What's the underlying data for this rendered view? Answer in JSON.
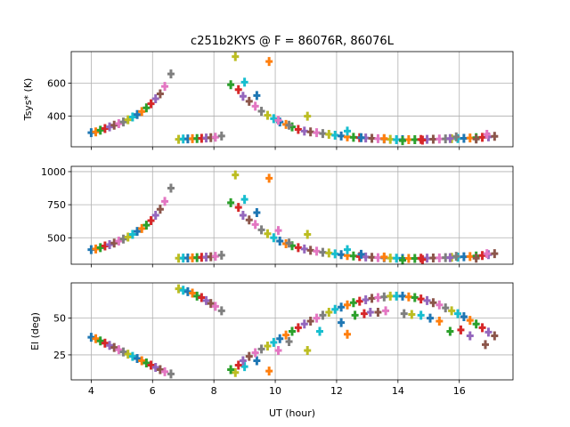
{
  "chart_data": {
    "type": "scatter",
    "title": "c251b2KYS @ F = 86076R, 86076L",
    "xlabel": "UT (hour)",
    "palette": [
      "#1f77b4",
      "#ff7f0e",
      "#2ca02c",
      "#d62728",
      "#9467bd",
      "#8c564b",
      "#e377c2",
      "#7f7f7f",
      "#bcbd22",
      "#17becf"
    ],
    "x_ticks": [
      "4",
      "6",
      "8",
      "10",
      "12",
      "14",
      "16"
    ],
    "x_range": [
      3.35,
      17.75
    ],
    "panels": [
      {
        "ylabel": "Tsys* (K)",
        "y_range": [
          215,
          790
        ],
        "y_ticks": [
          "400",
          "600"
        ],
        "y_tick_values": [
          400,
          600
        ],
        "points": [
          [
            4.0,
            300
          ],
          [
            4.15,
            305
          ],
          [
            4.3,
            315
          ],
          [
            4.45,
            325
          ],
          [
            4.6,
            335
          ],
          [
            4.75,
            345
          ],
          [
            4.9,
            355
          ],
          [
            5.05,
            365
          ],
          [
            5.2,
            378
          ],
          [
            5.35,
            395
          ],
          [
            5.5,
            410
          ],
          [
            5.65,
            428
          ],
          [
            5.8,
            450
          ],
          [
            5.95,
            475
          ],
          [
            6.1,
            505
          ],
          [
            6.25,
            535
          ],
          [
            6.4,
            580
          ],
          [
            6.6,
            655
          ],
          [
            6.85,
            260
          ],
          [
            7.0,
            262
          ],
          [
            7.15,
            263
          ],
          [
            7.3,
            264
          ],
          [
            7.45,
            265
          ],
          [
            7.6,
            266
          ],
          [
            7.75,
            268
          ],
          [
            7.9,
            270
          ],
          [
            8.05,
            273
          ],
          [
            8.25,
            280
          ],
          [
            8.7,
            760
          ],
          [
            9.0,
            605
          ],
          [
            9.4,
            525
          ],
          [
            9.8,
            730
          ],
          [
            8.55,
            590
          ],
          [
            8.8,
            560
          ],
          [
            8.95,
            520
          ],
          [
            9.15,
            490
          ],
          [
            9.35,
            460
          ],
          [
            9.55,
            430
          ],
          [
            9.75,
            405
          ],
          [
            9.95,
            385
          ],
          [
            10.15,
            365
          ],
          [
            10.35,
            350
          ],
          [
            10.55,
            335
          ],
          [
            10.75,
            320
          ],
          [
            10.95,
            310
          ],
          [
            11.15,
            305
          ],
          [
            11.35,
            300
          ],
          [
            11.55,
            295
          ],
          [
            11.75,
            290
          ],
          [
            11.95,
            285
          ],
          [
            12.15,
            280
          ],
          [
            12.35,
            275
          ],
          [
            12.55,
            272
          ],
          [
            12.75,
            270
          ],
          [
            12.95,
            268
          ],
          [
            13.15,
            266
          ],
          [
            13.35,
            264
          ],
          [
            13.55,
            262
          ],
          [
            13.75,
            260
          ],
          [
            13.95,
            258
          ],
          [
            14.15,
            258
          ],
          [
            14.35,
            258
          ],
          [
            14.55,
            258
          ],
          [
            14.75,
            259
          ],
          [
            14.95,
            260
          ],
          [
            15.15,
            261
          ],
          [
            15.35,
            262
          ],
          [
            15.55,
            263
          ],
          [
            15.75,
            264
          ],
          [
            15.95,
            265
          ],
          [
            16.15,
            266
          ],
          [
            16.35,
            268
          ],
          [
            16.55,
            270
          ],
          [
            16.75,
            272
          ],
          [
            16.95,
            275
          ],
          [
            17.15,
            278
          ],
          [
            10.1,
            375
          ],
          [
            10.45,
            345
          ],
          [
            11.05,
            400
          ],
          [
            12.35,
            310
          ],
          [
            12.8,
            270
          ],
          [
            13.55,
            265
          ],
          [
            14.15,
            252
          ],
          [
            14.8,
            255
          ],
          [
            15.7,
            265
          ],
          [
            16.55,
            262
          ],
          [
            16.9,
            290
          ],
          [
            15.9,
            275
          ]
        ]
      },
      {
        "ylabel": "",
        "y_range": [
          300,
          1040
        ],
        "y_ticks": [
          "500",
          "750",
          "1000"
        ],
        "y_tick_values": [
          500,
          750,
          1000
        ],
        "points": [
          [
            4.0,
            410
          ],
          [
            4.15,
            415
          ],
          [
            4.3,
            425
          ],
          [
            4.45,
            438
          ],
          [
            4.6,
            448
          ],
          [
            4.75,
            460
          ],
          [
            4.9,
            475
          ],
          [
            5.05,
            490
          ],
          [
            5.2,
            505
          ],
          [
            5.35,
            525
          ],
          [
            5.5,
            548
          ],
          [
            5.65,
            570
          ],
          [
            5.8,
            595
          ],
          [
            5.95,
            630
          ],
          [
            6.1,
            670
          ],
          [
            6.25,
            715
          ],
          [
            6.4,
            775
          ],
          [
            6.6,
            875
          ],
          [
            6.85,
            345
          ],
          [
            7.0,
            346
          ],
          [
            7.15,
            347
          ],
          [
            7.3,
            348
          ],
          [
            7.45,
            350
          ],
          [
            7.6,
            352
          ],
          [
            7.75,
            354
          ],
          [
            7.9,
            356
          ],
          [
            8.05,
            360
          ],
          [
            8.25,
            368
          ],
          [
            8.7,
            975
          ],
          [
            9.0,
            790
          ],
          [
            9.4,
            690
          ],
          [
            9.8,
            950
          ],
          [
            8.55,
            765
          ],
          [
            8.8,
            730
          ],
          [
            8.95,
            670
          ],
          [
            9.15,
            635
          ],
          [
            9.35,
            600
          ],
          [
            9.55,
            560
          ],
          [
            9.75,
            530
          ],
          [
            9.95,
            500
          ],
          [
            10.15,
            475
          ],
          [
            10.35,
            455
          ],
          [
            10.55,
            440
          ],
          [
            10.75,
            425
          ],
          [
            10.95,
            415
          ],
          [
            11.15,
            405
          ],
          [
            11.35,
            398
          ],
          [
            11.55,
            390
          ],
          [
            11.75,
            385
          ],
          [
            11.95,
            378
          ],
          [
            12.15,
            372
          ],
          [
            12.35,
            366
          ],
          [
            12.55,
            362
          ],
          [
            12.75,
            358
          ],
          [
            12.95,
            355
          ],
          [
            13.15,
            352
          ],
          [
            13.35,
            350
          ],
          [
            13.55,
            348
          ],
          [
            13.75,
            346
          ],
          [
            13.95,
            345
          ],
          [
            14.15,
            344
          ],
          [
            14.35,
            344
          ],
          [
            14.55,
            344
          ],
          [
            14.75,
            345
          ],
          [
            14.95,
            346
          ],
          [
            15.15,
            347
          ],
          [
            15.35,
            348
          ],
          [
            15.55,
            350
          ],
          [
            15.75,
            352
          ],
          [
            15.95,
            354
          ],
          [
            16.15,
            356
          ],
          [
            16.35,
            358
          ],
          [
            16.55,
            362
          ],
          [
            16.75,
            366
          ],
          [
            16.95,
            372
          ],
          [
            17.15,
            380
          ],
          [
            10.1,
            555
          ],
          [
            10.45,
            460
          ],
          [
            11.05,
            525
          ],
          [
            12.35,
            410
          ],
          [
            12.8,
            375
          ],
          [
            13.55,
            355
          ],
          [
            14.15,
            330
          ],
          [
            14.8,
            335
          ],
          [
            15.7,
            350
          ],
          [
            16.55,
            345
          ],
          [
            16.9,
            380
          ],
          [
            15.9,
            360
          ]
        ]
      },
      {
        "ylabel": "El (deg)",
        "y_range": [
          8,
          74
        ],
        "y_ticks": [
          "25",
          "50"
        ],
        "y_tick_values": [
          25,
          50
        ],
        "points": [
          [
            4.0,
            37
          ],
          [
            4.15,
            36
          ],
          [
            4.3,
            34.5
          ],
          [
            4.45,
            33
          ],
          [
            4.6,
            31.5
          ],
          [
            4.75,
            30
          ],
          [
            4.9,
            28.5
          ],
          [
            5.05,
            27
          ],
          [
            5.2,
            25.5
          ],
          [
            5.35,
            24
          ],
          [
            5.5,
            22.5
          ],
          [
            5.65,
            21
          ],
          [
            5.8,
            19.5
          ],
          [
            5.95,
            18
          ],
          [
            6.1,
            16.5
          ],
          [
            6.25,
            15
          ],
          [
            6.4,
            13.5
          ],
          [
            6.6,
            12
          ],
          [
            6.85,
            70
          ],
          [
            7.0,
            69
          ],
          [
            7.15,
            68
          ],
          [
            7.3,
            67
          ],
          [
            7.45,
            65
          ],
          [
            7.6,
            64
          ],
          [
            7.75,
            62
          ],
          [
            7.9,
            60
          ],
          [
            8.05,
            58
          ],
          [
            8.25,
            55
          ],
          [
            8.7,
            13
          ],
          [
            9.0,
            17
          ],
          [
            9.4,
            21
          ],
          [
            9.8,
            14
          ],
          [
            8.55,
            15
          ],
          [
            8.8,
            18
          ],
          [
            8.95,
            21
          ],
          [
            9.15,
            24
          ],
          [
            9.35,
            26.5
          ],
          [
            9.55,
            29
          ],
          [
            9.75,
            31
          ],
          [
            9.95,
            33.5
          ],
          [
            10.15,
            36
          ],
          [
            10.35,
            38.5
          ],
          [
            10.55,
            41
          ],
          [
            10.75,
            43.5
          ],
          [
            10.95,
            46
          ],
          [
            11.15,
            48
          ],
          [
            11.35,
            50
          ],
          [
            11.55,
            52
          ],
          [
            11.75,
            54
          ],
          [
            11.95,
            56
          ],
          [
            12.15,
            57.5
          ],
          [
            12.35,
            59
          ],
          [
            12.55,
            60.5
          ],
          [
            12.75,
            61.5
          ],
          [
            12.95,
            62.5
          ],
          [
            13.15,
            63.5
          ],
          [
            13.35,
            64
          ],
          [
            13.55,
            64.5
          ],
          [
            13.75,
            65
          ],
          [
            13.95,
            65
          ],
          [
            14.15,
            65
          ],
          [
            14.35,
            64.5
          ],
          [
            14.55,
            64
          ],
          [
            14.75,
            63
          ],
          [
            14.95,
            62
          ],
          [
            15.15,
            60.5
          ],
          [
            15.35,
            59
          ],
          [
            15.55,
            57
          ],
          [
            15.75,
            55
          ],
          [
            15.95,
            53
          ],
          [
            16.15,
            51
          ],
          [
            16.35,
            48.5
          ],
          [
            16.55,
            46
          ],
          [
            16.75,
            43.5
          ],
          [
            16.95,
            40.5
          ],
          [
            17.15,
            38
          ],
          [
            10.1,
            28
          ],
          [
            10.45,
            34
          ],
          [
            11.05,
            28
          ],
          [
            11.45,
            41
          ],
          [
            12.15,
            47
          ],
          [
            12.35,
            39
          ],
          [
            12.6,
            52
          ],
          [
            12.9,
            53
          ],
          [
            13.1,
            54
          ],
          [
            13.35,
            54
          ],
          [
            13.6,
            55
          ],
          [
            14.2,
            53
          ],
          [
            14.45,
            52.5
          ],
          [
            14.75,
            52
          ],
          [
            15.05,
            50
          ],
          [
            15.35,
            48
          ],
          [
            15.7,
            41
          ],
          [
            16.05,
            42
          ],
          [
            16.35,
            38
          ],
          [
            16.85,
            32
          ]
        ]
      }
    ]
  }
}
